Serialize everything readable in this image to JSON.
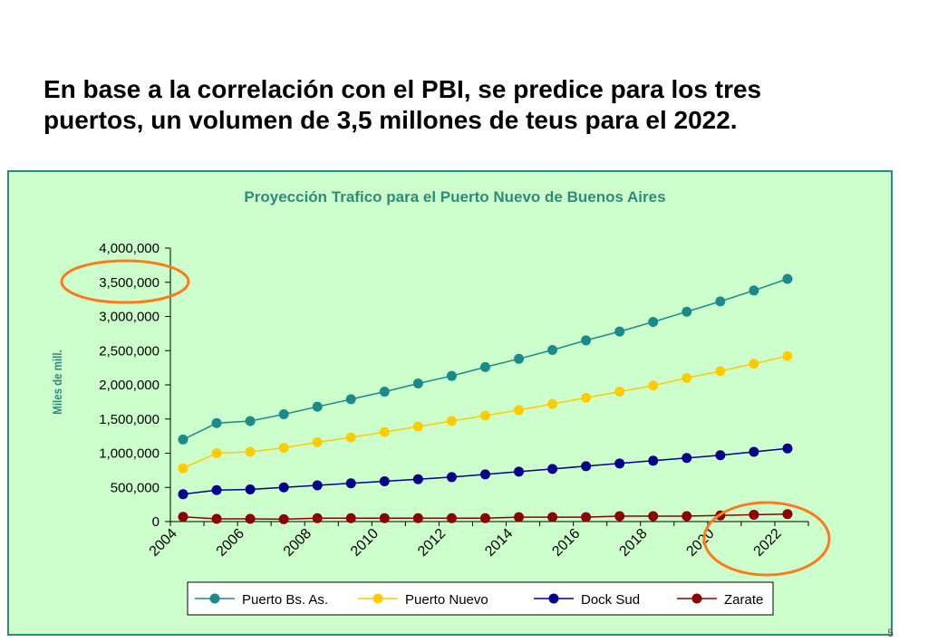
{
  "slide": {
    "title_line1": "En base a la correlación con el PBI, se predice para los tres",
    "title_line2": "puertos, un volumen de 3,5 millones de teus para el 2022.",
    "page_number": "5"
  },
  "colors": {
    "panel_bg": "#ccffcc",
    "panel_border": "#2e8b7a",
    "title_color": "#2e8b7a",
    "highlight_circle": "#ff7a1a"
  },
  "chart_data": {
    "type": "line",
    "title": "Proyección Trafico para el Puerto Nuevo de Buenos Aires",
    "xlabel": "",
    "ylabel": "Miles de mill.",
    "x": [
      2004,
      2005,
      2006,
      2007,
      2008,
      2009,
      2010,
      2011,
      2012,
      2013,
      2014,
      2015,
      2016,
      2017,
      2018,
      2019,
      2020,
      2021,
      2022
    ],
    "xticks": [
      "2004",
      "2006",
      "2008",
      "2010",
      "2012",
      "2014",
      "2016",
      "2018",
      "2020",
      "2022"
    ],
    "ylim": [
      0,
      4000000
    ],
    "yticks": [
      "0",
      "500,000",
      "1,000,000",
      "1,500,000",
      "2,000,000",
      "2,500,000",
      "3,000,000",
      "3,500,000",
      "4,000,000"
    ],
    "legend_position": "bottom",
    "series": [
      {
        "name": "Puerto Bs. As.",
        "color": "#1a8a8a",
        "values": [
          1200000,
          1440000,
          1470000,
          1570000,
          1680000,
          1790000,
          1900000,
          2020000,
          2130000,
          2260000,
          2380000,
          2510000,
          2650000,
          2780000,
          2920000,
          3070000,
          3220000,
          3380000,
          3550000
        ]
      },
      {
        "name": "Puerto Nuevo",
        "color": "#ffcc00",
        "values": [
          780000,
          1000000,
          1020000,
          1080000,
          1160000,
          1230000,
          1310000,
          1390000,
          1470000,
          1550000,
          1630000,
          1720000,
          1810000,
          1900000,
          1990000,
          2100000,
          2200000,
          2310000,
          2420000
        ]
      },
      {
        "name": "Dock Sud",
        "color": "#00008b",
        "values": [
          400000,
          460000,
          470000,
          500000,
          530000,
          560000,
          590000,
          620000,
          650000,
          690000,
          730000,
          770000,
          810000,
          850000,
          890000,
          930000,
          970000,
          1020000,
          1070000
        ]
      },
      {
        "name": "Zarate",
        "color": "#8b0000",
        "values": [
          70000,
          40000,
          40000,
          35000,
          50000,
          50000,
          50000,
          50000,
          50000,
          50000,
          65000,
          65000,
          65000,
          80000,
          80000,
          80000,
          90000,
          100000,
          110000
        ]
      }
    ]
  }
}
